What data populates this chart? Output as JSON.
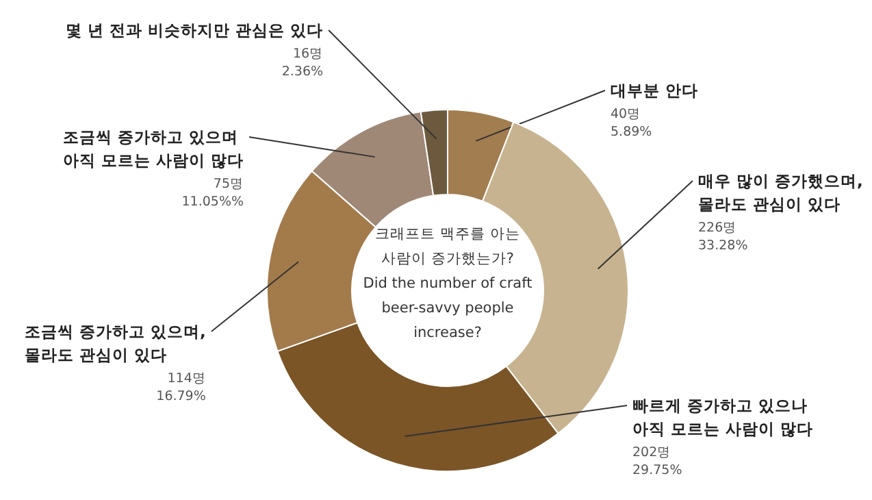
{
  "chart_data": {
    "type": "donut",
    "title": "크래프트 맥주를 아는\n사람이 증가했는가?\nDid the number of craft\nbeer-savvy people\nincrease?",
    "categories": [
      "대부분 안다",
      "매우 많이 증가했으며,\n몰라도 관심이 있다",
      "빠르게 증가하고 있으나\n아직 모르는 사람이 많다",
      "조금씩 증가하고 있으며,\n몰라도 관심이 있다",
      "조금씩 증가하고 있으며\n아직 모르는 사람이 많다",
      "몇 년 전과 비슷하지만 관심은 있다"
    ],
    "values": [
      40,
      226,
      202,
      114,
      75,
      16
    ],
    "colors": [
      "#a27d4f",
      "#c7b38f",
      "#7b5526",
      "#a37b4b",
      "#a08877",
      "#6d5a3e"
    ],
    "value_labels": [
      "40명\n5.89%",
      "226명\n33.28%",
      "202명\n29.75%",
      "114명\n16.79%",
      "75명\n11.05%%",
      "16명\n2.36%"
    ]
  }
}
